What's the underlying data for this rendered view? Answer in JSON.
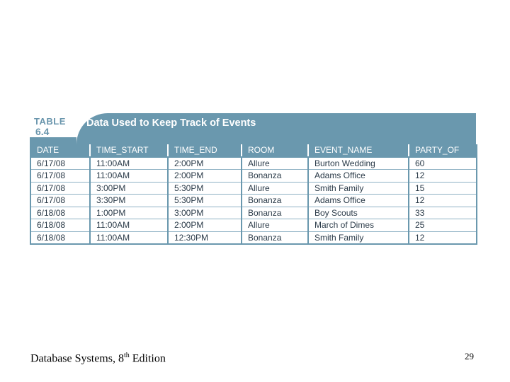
{
  "table": {
    "label_word": "TABLE",
    "label_number": "6.4",
    "title": "Data Used to Keep Track of Events",
    "columns": [
      "DATE",
      "TIME_START",
      "TIME_END",
      "ROOM",
      "EVENT_NAME",
      "PARTY_OF"
    ],
    "rows": [
      [
        "6/17/08",
        "11:00AM",
        "2:00PM",
        "Allure",
        "Burton Wedding",
        "60"
      ],
      [
        "6/17/08",
        "11:00AM",
        "2:00PM",
        "Bonanza",
        "Adams Office",
        "12"
      ],
      [
        "6/17/08",
        "3:00PM",
        "5:30PM",
        "Allure",
        "Smith Family",
        "15"
      ],
      [
        "6/17/08",
        "3:30PM",
        "5:30PM",
        "Bonanza",
        "Adams Office",
        "12"
      ],
      [
        "6/18/08",
        "1:00PM",
        "3:00PM",
        "Bonanza",
        "Boy Scouts",
        "33"
      ],
      [
        "6/18/08",
        "11:00AM",
        "2:00PM",
        "Allure",
        "March of Dimes",
        "25"
      ],
      [
        "6/18/08",
        "11:00AM",
        "12:30PM",
        "Bonanza",
        "Smith Family",
        "12"
      ]
    ]
  },
  "footer": {
    "book_title_prefix": "Database Systems, 8",
    "book_title_sup": "th",
    "book_title_suffix": " Edition",
    "page_number": "29"
  },
  "colors": {
    "header_blue": "#6a98ae",
    "text": "#2a3a48"
  }
}
